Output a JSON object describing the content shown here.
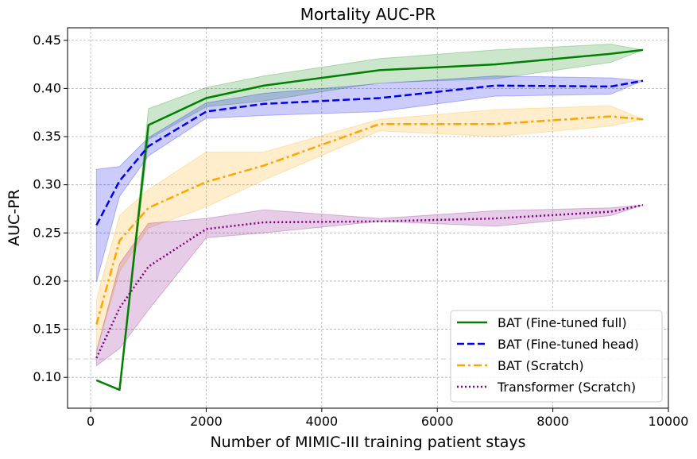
{
  "chart_data": {
    "type": "line",
    "title": "Mortality AUC-PR",
    "xlabel": "Number of MIMIC-III training patient stays",
    "ylabel": "AUC-PR",
    "xlim": [
      -400,
      10000
    ],
    "ylim": [
      0.068,
      0.463
    ],
    "xticks": [
      0,
      2000,
      4000,
      6000,
      8000,
      10000
    ],
    "yticks": [
      0.1,
      0.15,
      0.2,
      0.25,
      0.3,
      0.35,
      0.4,
      0.45
    ],
    "grid": true,
    "legend_position": "bottom-right",
    "baseline": {
      "value": 0.119,
      "style": "dashed",
      "color": "#dddddd"
    },
    "series": [
      {
        "name": "BAT (Fine-tuned full)",
        "color": "#008000",
        "line_style": "solid",
        "x": [
          100,
          500,
          1000,
          2000,
          3000,
          5000,
          7000,
          9000,
          9560
        ],
        "values": [
          0.097,
          0.087,
          0.362,
          0.39,
          0.403,
          0.419,
          0.425,
          0.436,
          0.44
        ],
        "lower": [
          0.097,
          0.087,
          0.347,
          0.381,
          0.387,
          0.406,
          0.41,
          0.427,
          0.44
        ],
        "upper": [
          0.097,
          0.087,
          0.379,
          0.401,
          0.413,
          0.431,
          0.44,
          0.446,
          0.44
        ]
      },
      {
        "name": "BAT (Fine-tuned head)",
        "color": "#0000ee",
        "line_style": "dashed",
        "x": [
          100,
          500,
          1000,
          2000,
          3000,
          5000,
          7000,
          9000,
          9560
        ],
        "values": [
          0.258,
          0.304,
          0.34,
          0.376,
          0.384,
          0.39,
          0.403,
          0.402,
          0.408
        ],
        "lower": [
          0.199,
          0.288,
          0.33,
          0.369,
          0.372,
          0.376,
          0.392,
          0.394,
          0.408
        ],
        "upper": [
          0.316,
          0.319,
          0.349,
          0.385,
          0.395,
          0.405,
          0.413,
          0.411,
          0.408
        ]
      },
      {
        "name": "BAT (Scratch)",
        "color": "#ffa500",
        "line_style": "dashdot",
        "x": [
          100,
          500,
          1000,
          2000,
          3000,
          5000,
          7000,
          9000,
          9560
        ],
        "values": [
          0.155,
          0.242,
          0.276,
          0.303,
          0.32,
          0.363,
          0.363,
          0.371,
          0.368
        ],
        "lower": [
          0.127,
          0.21,
          0.255,
          0.277,
          0.305,
          0.356,
          0.35,
          0.361,
          0.368
        ],
        "upper": [
          0.181,
          0.268,
          0.295,
          0.334,
          0.334,
          0.368,
          0.378,
          0.382,
          0.368
        ]
      },
      {
        "name": "Transformer (Scratch)",
        "color": "#800080",
        "line_style": "dotted",
        "x": [
          100,
          500,
          1000,
          2000,
          3000,
          5000,
          7000,
          9000,
          9560
        ],
        "values": [
          0.12,
          0.172,
          0.215,
          0.254,
          0.261,
          0.262,
          0.265,
          0.272,
          0.279
        ],
        "lower": [
          0.112,
          0.13,
          0.17,
          0.245,
          0.25,
          0.262,
          0.257,
          0.268,
          0.279
        ],
        "upper": [
          0.127,
          0.218,
          0.26,
          0.265,
          0.274,
          0.265,
          0.273,
          0.276,
          0.279
        ]
      }
    ]
  }
}
